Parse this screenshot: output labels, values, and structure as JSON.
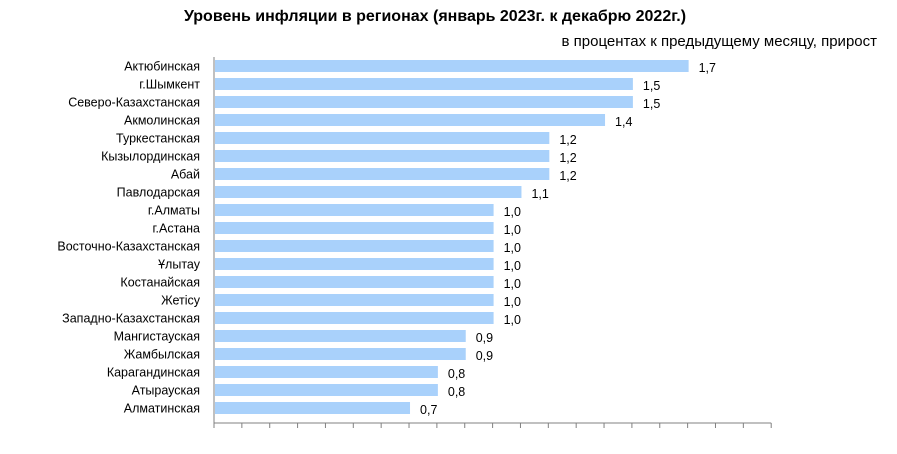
{
  "chart_data": {
    "type": "bar",
    "orientation": "horizontal",
    "title": "Уровень инфляции в регионах (январь 2023г. к декабрю 2022г.)",
    "subtitle": "в процентах к предыдущему месяцу, прирост",
    "categories": [
      "Актюбинская",
      "г.Шымкент",
      "Северо-Казахстанская",
      "Акмолинская",
      "Туркестанская",
      "Кызылординская",
      "Абай",
      "Павлодарская",
      "г.Алматы",
      "г.Астана",
      "Восточно-Казахстанская",
      "Ұлытау",
      "Костанайская",
      "Жетісу",
      "Западно-Казахстанская",
      "Мангистауская",
      "Жамбылская",
      "Карагандинская",
      "Атырауская",
      "Алматинская"
    ],
    "values": [
      1.7,
      1.5,
      1.5,
      1.4,
      1.2,
      1.2,
      1.2,
      1.1,
      1.0,
      1.0,
      1.0,
      1.0,
      1.0,
      1.0,
      1.0,
      0.9,
      0.9,
      0.8,
      0.8,
      0.7
    ],
    "value_labels": [
      "1,7",
      "1,5",
      "1,5",
      "1,4",
      "1,2",
      "1,2",
      "1,2",
      "1,1",
      "1,0",
      "1,0",
      "1,0",
      "1,0",
      "1,0",
      "1,0",
      "1,0",
      "0,9",
      "0,9",
      "0,8",
      "0,8",
      "0,7"
    ],
    "xlim": [
      0,
      2.0
    ],
    "x_tick_step": 0.1,
    "grid": false,
    "legend": "none",
    "bar_color": "#a9d1fb",
    "axis_color": "#808080"
  }
}
